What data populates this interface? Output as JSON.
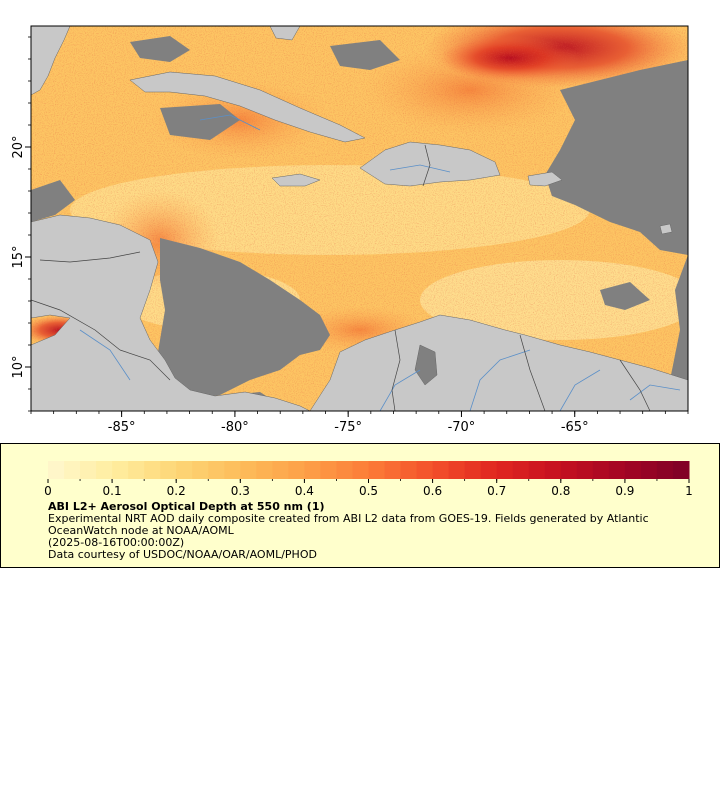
{
  "map": {
    "lon_range": [
      -89,
      -60
    ],
    "lat_range": [
      8,
      25.5
    ],
    "x_ticks": [
      {
        "lon": -85,
        "label": "-85°"
      },
      {
        "lon": -80,
        "label": "-80°"
      },
      {
        "lon": -75,
        "label": "-75°"
      },
      {
        "lon": -70,
        "label": "-70°"
      },
      {
        "lon": -65,
        "label": "-65°"
      }
    ],
    "y_ticks": [
      {
        "lat": 20,
        "label": "20°"
      },
      {
        "lat": 15,
        "label": "15°"
      },
      {
        "lat": 10,
        "label": "10°"
      }
    ],
    "colors": {
      "land": "#c8c8c8",
      "nodata": "#808080",
      "rivers": "#5a8fc8",
      "borders": "#444444"
    }
  },
  "legend": {
    "colorbar": {
      "min": 0,
      "max": 1,
      "ticks": [
        "0",
        "0.1",
        "0.2",
        "0.3",
        "0.4",
        "0.5",
        "0.6",
        "0.7",
        "0.8",
        "0.9",
        "1"
      ],
      "colors": [
        "#fff7cf",
        "#ffeea0",
        "#fdd677",
        "#fdbd5a",
        "#fda048",
        "#fc7c38",
        "#f3502a",
        "#e02620",
        "#c4101f",
        "#a30424",
        "#7d0026"
      ]
    },
    "title": "ABI L2+ Aerosol Optical Depth at 550 nm (1)",
    "line1": "Experimental NRT AOD daily composite created from ABI L2 data from GOES-19. Fields generated by Atlantic OceanWatch node at NOAA/AOML",
    "line2": "(2025-08-16T00:00:00Z)",
    "line3": "Data courtesy of USDOC/NOAA/OAR/AOML/PHOD"
  }
}
